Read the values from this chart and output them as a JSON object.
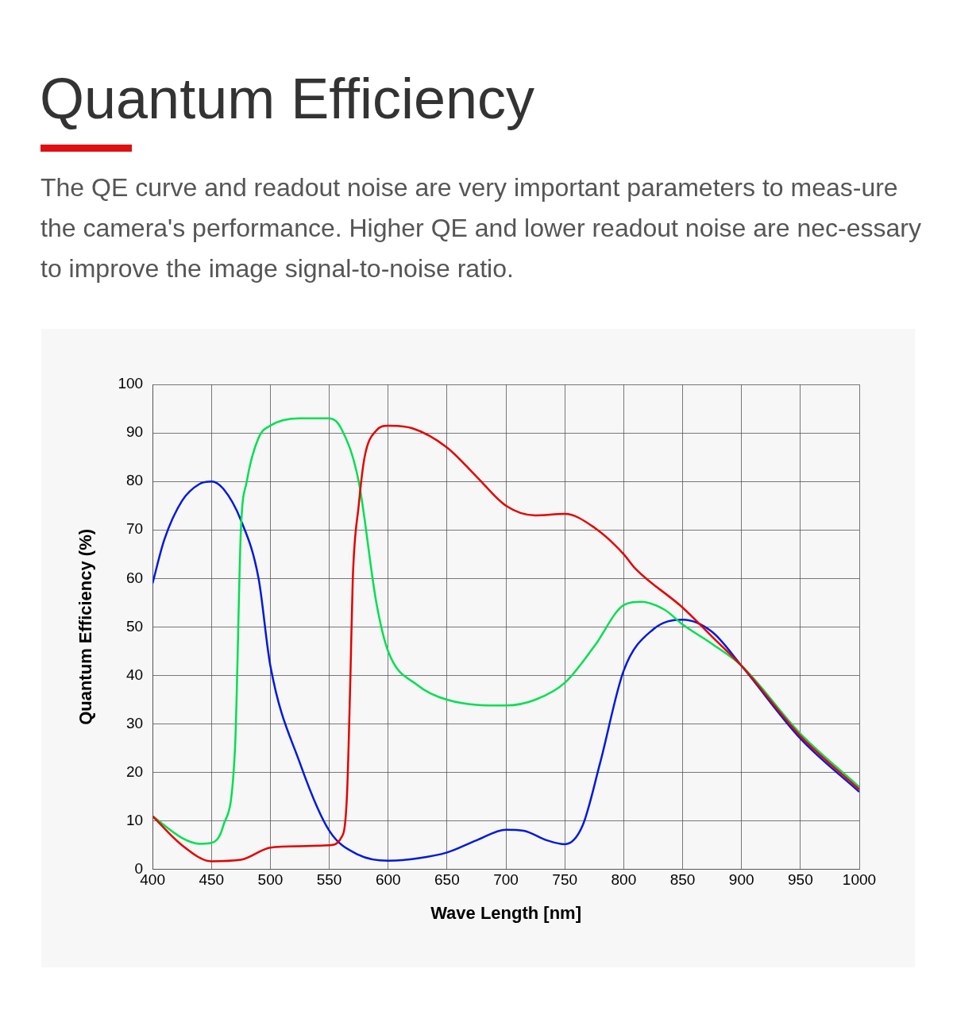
{
  "chart_data": {
    "type": "line",
    "title": "Quantum Efficiency",
    "subtitle": "The QE curve and readout noise are very important parameters to meas-ure the camera's performance. Higher QE and lower readout noise are nec-essary to improve the image signal-to-noise ratio.",
    "xlabel": "Wave Length [nm]",
    "ylabel": "Quantum Efficiency (%)",
    "xlim": [
      400,
      1000
    ],
    "xticks": [
      400,
      450,
      500,
      550,
      600,
      650,
      700,
      750,
      800,
      850,
      900,
      950,
      1000
    ],
    "ylim": [
      0,
      100
    ],
    "yticks": [
      0,
      10,
      20,
      30,
      40,
      50,
      60,
      70,
      80,
      90,
      100
    ],
    "grid": true,
    "legend": false,
    "marker": "none",
    "line_style": "solid",
    "series": [
      {
        "color": "#e60000",
        "x": [
          400,
          425,
          450,
          475,
          500,
          525,
          550,
          560,
          565,
          568,
          570,
          575,
          580,
          590,
          600,
          620,
          650,
          675,
          700,
          725,
          750,
          775,
          800,
          810,
          850,
          875,
          900,
          950,
          1000
        ],
        "values": [
          11,
          5,
          1.7,
          2,
          4.5,
          4.8,
          5,
          6.5,
          15,
          40,
          60,
          75,
          85,
          90.5,
          91.5,
          91,
          87,
          81,
          75,
          73,
          73.3,
          70.5,
          65,
          62,
          54,
          48,
          42,
          27.5,
          16.5
        ]
      },
      {
        "color": "#00e050",
        "x": [
          400,
          425,
          440,
          450,
          460,
          470,
          475,
          480,
          490,
          500,
          525,
          550,
          560,
          575,
          590,
          600,
          625,
          650,
          700,
          725,
          750,
          775,
          800,
          815,
          835,
          850,
          875,
          900,
          950,
          1000
        ],
        "values": [
          11,
          6.5,
          5.3,
          5.5,
          9,
          25,
          70,
          80,
          89,
          91.5,
          93,
          93,
          91,
          80,
          55,
          45,
          38,
          35,
          33.8,
          35,
          38.5,
          46,
          54.5,
          55.2,
          53.5,
          50.5,
          46.5,
          42,
          28,
          17
        ]
      },
      {
        "color": "#0019e0",
        "x": [
          400,
          410,
          425,
          440,
          450,
          460,
          475,
          490,
          500,
          525,
          550,
          575,
          600,
          625,
          650,
          675,
          700,
          715,
          735,
          750,
          765,
          780,
          800,
          825,
          850,
          875,
          900,
          950,
          1000
        ],
        "values": [
          59,
          68,
          76,
          79.5,
          80,
          78.5,
          72,
          60,
          42,
          22,
          8,
          3,
          1.8,
          2.3,
          3.5,
          6,
          8.2,
          8,
          6,
          5.2,
          9,
          22,
          41,
          49.5,
          51.5,
          49,
          42,
          27,
          16
        ]
      }
    ]
  }
}
